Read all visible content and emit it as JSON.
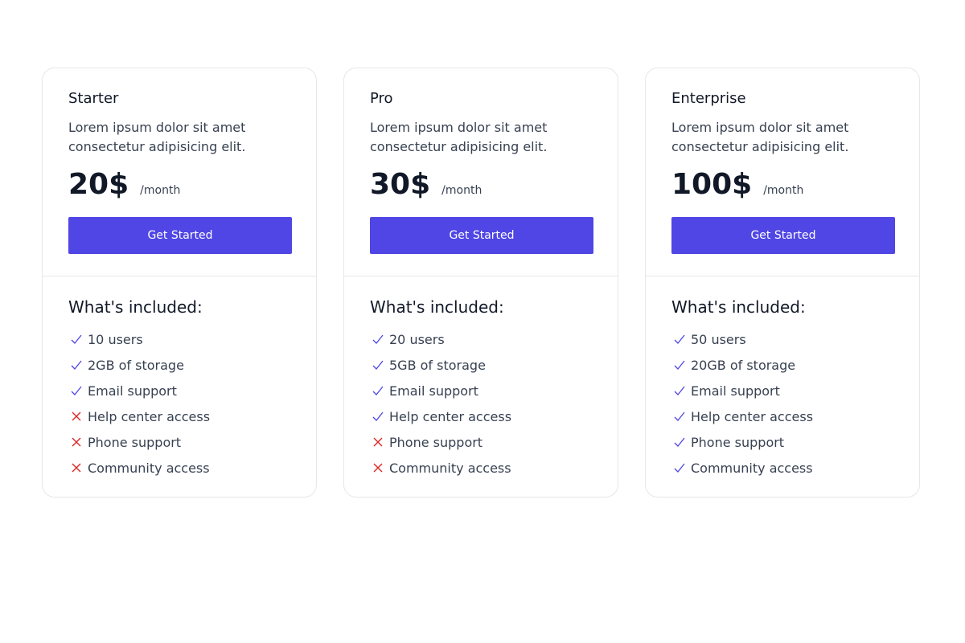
{
  "colors": {
    "accent": "#4f46e5",
    "check": "#4f46e5",
    "cross": "#dc2626"
  },
  "plans": [
    {
      "name": "Starter",
      "description": "Lorem ipsum dolor sit amet consectetur adipisicing elit.",
      "price": "20$",
      "period": "/month",
      "button": "Get Started",
      "included_title": "What's included:",
      "features": [
        {
          "label": "10 users",
          "included": true
        },
        {
          "label": "2GB of storage",
          "included": true
        },
        {
          "label": "Email support",
          "included": true
        },
        {
          "label": "Help center access",
          "included": false
        },
        {
          "label": "Phone support",
          "included": false
        },
        {
          "label": "Community access",
          "included": false
        }
      ]
    },
    {
      "name": "Pro",
      "description": "Lorem ipsum dolor sit amet consectetur adipisicing elit.",
      "price": "30$",
      "period": "/month",
      "button": "Get Started",
      "included_title": "What's included:",
      "features": [
        {
          "label": "20 users",
          "included": true
        },
        {
          "label": "5GB of storage",
          "included": true
        },
        {
          "label": "Email support",
          "included": true
        },
        {
          "label": "Help center access",
          "included": true
        },
        {
          "label": "Phone support",
          "included": false
        },
        {
          "label": "Community access",
          "included": false
        }
      ]
    },
    {
      "name": "Enterprise",
      "description": "Lorem ipsum dolor sit amet consectetur adipisicing elit.",
      "price": "100$",
      "period": "/month",
      "button": "Get Started",
      "included_title": "What's included:",
      "features": [
        {
          "label": "50 users",
          "included": true
        },
        {
          "label": "20GB of storage",
          "included": true
        },
        {
          "label": "Email support",
          "included": true
        },
        {
          "label": "Help center access",
          "included": true
        },
        {
          "label": "Phone support",
          "included": true
        },
        {
          "label": "Community access",
          "included": true
        }
      ]
    }
  ]
}
